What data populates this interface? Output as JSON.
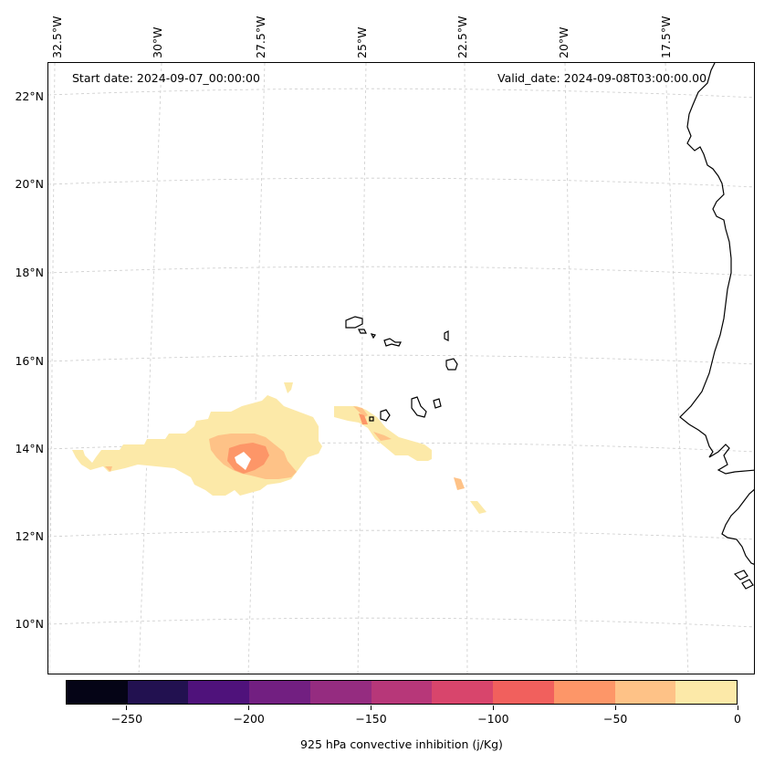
{
  "header": {
    "start_date": "Start date: 2024-09-07_00:00:00",
    "valid_date": "Valid_date: 2024-09-08T03:00:00.00"
  },
  "axes": {
    "longitude_labels": [
      "32.5°W",
      "30°W",
      "27.5°W",
      "25°W",
      "22.5°W",
      "20°W",
      "17.5°W"
    ],
    "latitude_labels": [
      "22°N",
      "20°N",
      "18°N",
      "16°N",
      "14°N",
      "12°N",
      "10°N"
    ]
  },
  "colorbar": {
    "label": "925 hPa convective inhibition (j/Kg)",
    "ticks": [
      "−250",
      "−200",
      "−150",
      "−100",
      "−50",
      "0"
    ],
    "colors": [
      "#050416",
      "#221150",
      "#4f127b",
      "#721f81",
      "#952c80",
      "#b73779",
      "#d8456c",
      "#f1605d",
      "#fd9668",
      "#fec287",
      "#fce9a8"
    ]
  },
  "map": {
    "field_colors": {
      "level_0_to_minus25": "#fce9a8",
      "level_minus25_to_minus50": "#fec287",
      "level_minus50_to_minus75": "#fd9668",
      "gridline": "#cccccc",
      "coastline": "#000000"
    }
  }
}
